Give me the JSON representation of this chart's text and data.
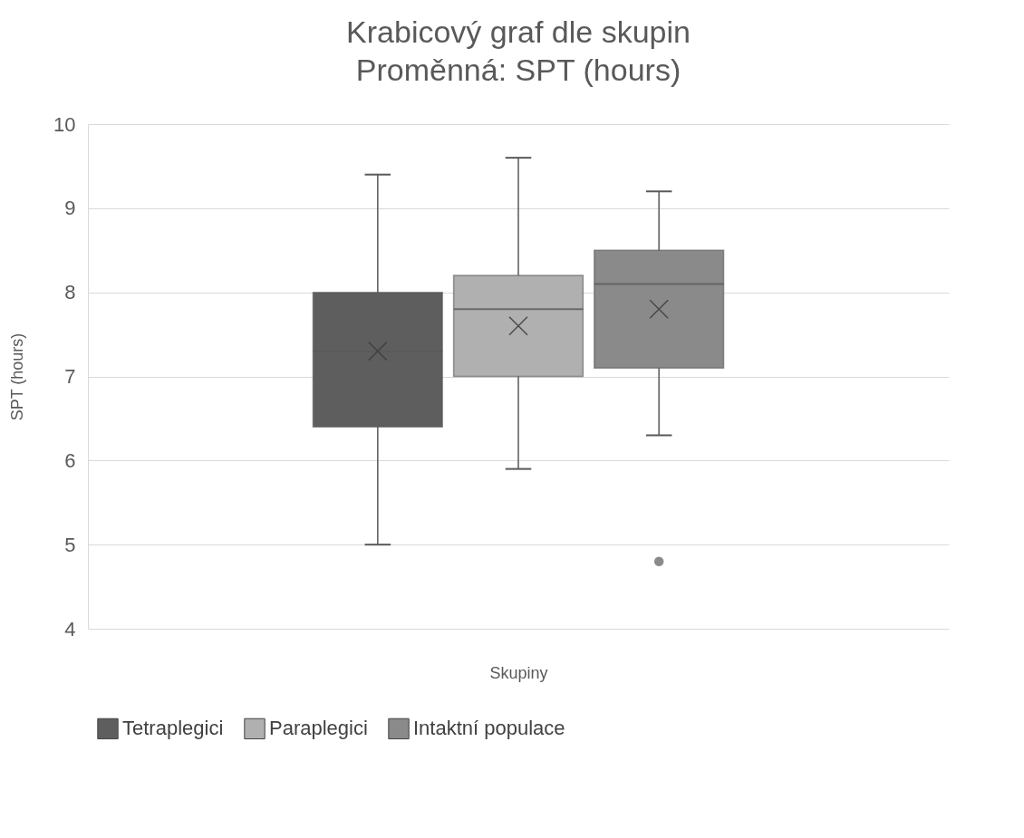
{
  "chart_data": {
    "type": "box",
    "title": "Krabicový graf dle skupin",
    "subtitle": "Proměnná: SPT (hours)",
    "xlabel": "Skupiny",
    "ylabel": "SPT (hours)",
    "categories": [
      null
    ],
    "ylim": [
      4,
      10
    ],
    "yticks": [
      4,
      5,
      6,
      7,
      8,
      9,
      10
    ],
    "grid": "y",
    "legend": "bottom",
    "tick_labels": "y",
    "series": [
      {
        "name": "Tetraplegici",
        "color": "#5e5e5e",
        "boxes": [
          {
            "low": 5.0,
            "q1": 6.4,
            "median": 7.3,
            "q3": 8.0,
            "high": 9.4,
            "mean": 7.3
          }
        ]
      },
      {
        "name": "Paraplegici",
        "color": "#b0b0b0",
        "boxes": [
          {
            "low": 5.9,
            "q1": 7.0,
            "median": 7.8,
            "q3": 8.2,
            "high": 9.6,
            "mean": 7.6
          }
        ]
      },
      {
        "name": "Intaktní populace",
        "color": "#8a8a8a",
        "boxes": [
          {
            "low": 6.3,
            "q1": 7.1,
            "median": 8.1,
            "q3": 8.5,
            "high": 9.2,
            "mean": 7.8,
            "outliers": [
              4.8
            ]
          }
        ]
      }
    ]
  }
}
